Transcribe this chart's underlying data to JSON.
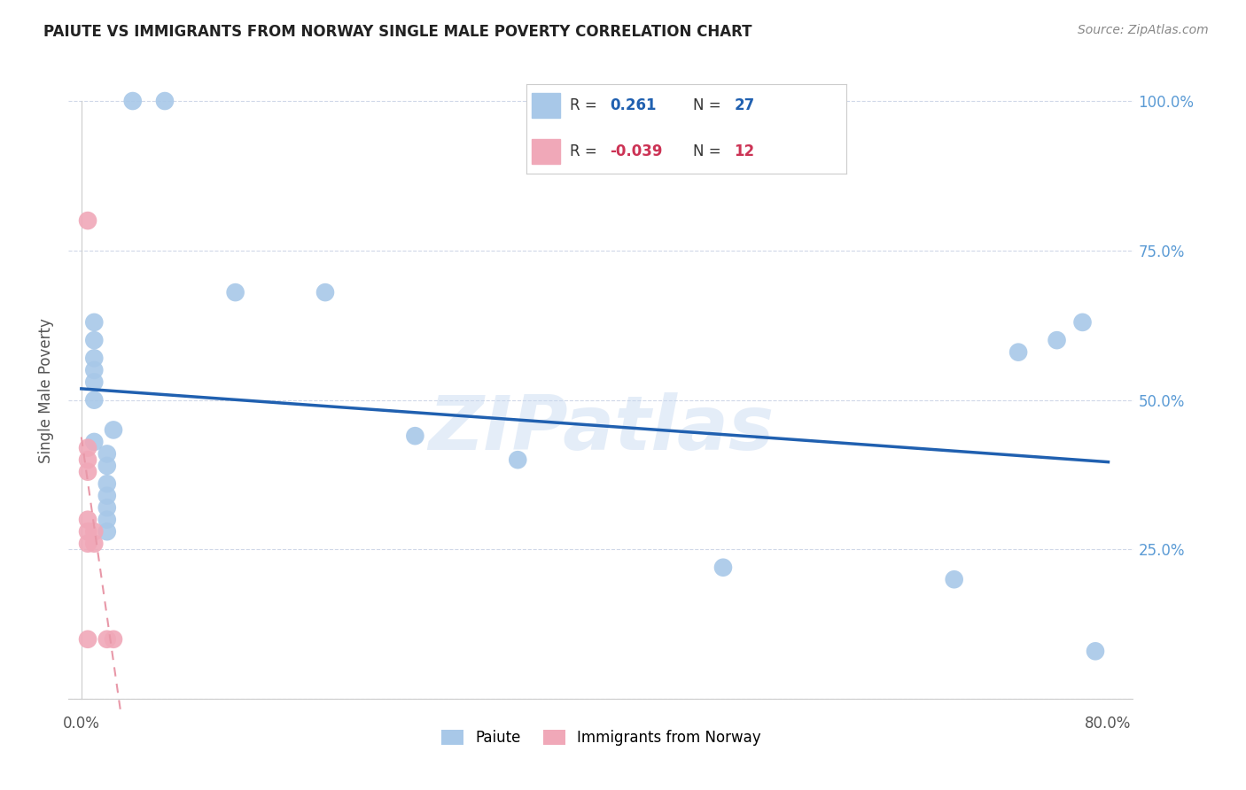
{
  "title": "PAIUTE VS IMMIGRANTS FROM NORWAY SINGLE MALE POVERTY CORRELATION CHART",
  "source": "Source: ZipAtlas.com",
  "ylabel": "Single Male Poverty",
  "watermark": "ZIPatlas",
  "xlim": [
    -0.01,
    0.82
  ],
  "ylim": [
    -0.02,
    1.05
  ],
  "paiute_r": 0.261,
  "paiute_n": 27,
  "norway_r": -0.039,
  "norway_n": 12,
  "paiute_color": "#a8c8e8",
  "norway_color": "#f0a8b8",
  "paiute_line_color": "#2060b0",
  "norway_line_color": "#e898a8",
  "grid_color": "#d0d8e8",
  "background_color": "#ffffff",
  "paiute_x": [
    0.04,
    0.065,
    0.01,
    0.01,
    0.01,
    0.01,
    0.01,
    0.01,
    0.01,
    0.02,
    0.02,
    0.02,
    0.02,
    0.02,
    0.02,
    0.02,
    0.025,
    0.12,
    0.19,
    0.26,
    0.34,
    0.5,
    0.68,
    0.73,
    0.76,
    0.78,
    0.79
  ],
  "paiute_y": [
    1.0,
    1.0,
    0.63,
    0.6,
    0.57,
    0.55,
    0.53,
    0.5,
    0.43,
    0.41,
    0.39,
    0.36,
    0.34,
    0.32,
    0.3,
    0.28,
    0.45,
    0.68,
    0.68,
    0.44,
    0.4,
    0.22,
    0.2,
    0.58,
    0.6,
    0.63,
    0.08
  ],
  "norway_x": [
    0.005,
    0.005,
    0.005,
    0.005,
    0.005,
    0.005,
    0.005,
    0.005,
    0.01,
    0.01,
    0.02,
    0.025
  ],
  "norway_y": [
    0.8,
    0.42,
    0.4,
    0.38,
    0.3,
    0.28,
    0.26,
    0.1,
    0.28,
    0.26,
    0.1,
    0.1
  ]
}
